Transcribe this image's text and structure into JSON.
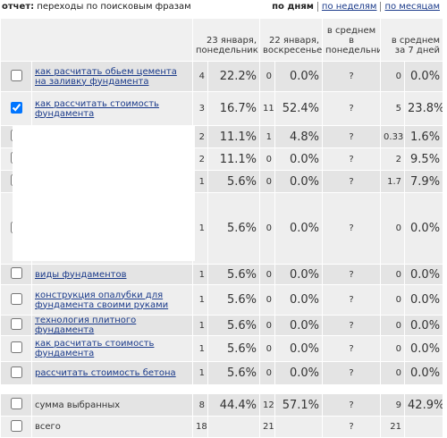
{
  "header": {
    "title_prefix": "отчет:",
    "title": "переходы по поисковым фразам",
    "periods": [
      "по дням",
      "по неделям",
      "по месяцам"
    ]
  },
  "table": {
    "columns": [
      "23 января, понедельник",
      "22 января, воскресенье",
      "в среднем в понедельник",
      "в среднем за 7 дней"
    ],
    "rows": [
      {
        "checked": false,
        "phrase": "как расчитать обьем цемента на заливку фундамента",
        "cells": [
          "4",
          "22.2%",
          "0",
          "0.0%",
          "?",
          "0",
          "0.0%"
        ]
      },
      {
        "checked": true,
        "phrase": "как рассчитать стоимость фундамента",
        "cells": [
          "3",
          "16.7%",
          "11",
          "52.4%",
          "?",
          "5",
          "23.8%"
        ]
      },
      {
        "checked": false,
        "phrase": null,
        "cells": [
          "2",
          "11.1%",
          "1",
          "4.8%",
          "?",
          "0.33",
          "1.6%"
        ]
      },
      {
        "checked": false,
        "phrase": null,
        "cells": [
          "2",
          "11.1%",
          "0",
          "0.0%",
          "?",
          "2",
          "9.5%"
        ]
      },
      {
        "checked": false,
        "phrase": null,
        "cells": [
          "1",
          "5.6%",
          "0",
          "0.0%",
          "?",
          "1.7",
          "7.9%"
        ]
      },
      {
        "checked": false,
        "phrase": null,
        "cells": [
          "1",
          "5.6%",
          "0",
          "0.0%",
          "?",
          "0",
          "0.0%"
        ]
      },
      {
        "checked": false,
        "phrase": "виды фундаментов",
        "cells": [
          "1",
          "5.6%",
          "0",
          "0.0%",
          "?",
          "0",
          "0.0%"
        ]
      },
      {
        "checked": false,
        "phrase": "конструкция опалубки для фундамента своими руками",
        "cells": [
          "1",
          "5.6%",
          "0",
          "0.0%",
          "?",
          "0",
          "0.0%"
        ]
      },
      {
        "checked": false,
        "phrase": "технология плитного фундамента",
        "cells": [
          "1",
          "5.6%",
          "0",
          "0.0%",
          "?",
          "0",
          "0.0%"
        ]
      },
      {
        "checked": false,
        "phrase": "как расчитать стоимость фундамента",
        "cells": [
          "1",
          "5.6%",
          "0",
          "0.0%",
          "?",
          "0",
          "0.0%"
        ]
      },
      {
        "checked": false,
        "phrase": "рассчитать стоимость бетона",
        "cells": [
          "1",
          "5.6%",
          "0",
          "0.0%",
          "?",
          "0",
          "0.0%"
        ]
      }
    ],
    "summary": [
      {
        "checked": false,
        "phrase": "сумма выбранных",
        "cells": [
          "8",
          "44.4%",
          "12",
          "57.1%",
          "?",
          "9",
          "42.9%"
        ]
      },
      {
        "checked": false,
        "phrase": "всего",
        "cells": [
          "18",
          null,
          "21",
          null,
          "?",
          "21",
          null
        ]
      }
    ]
  }
}
